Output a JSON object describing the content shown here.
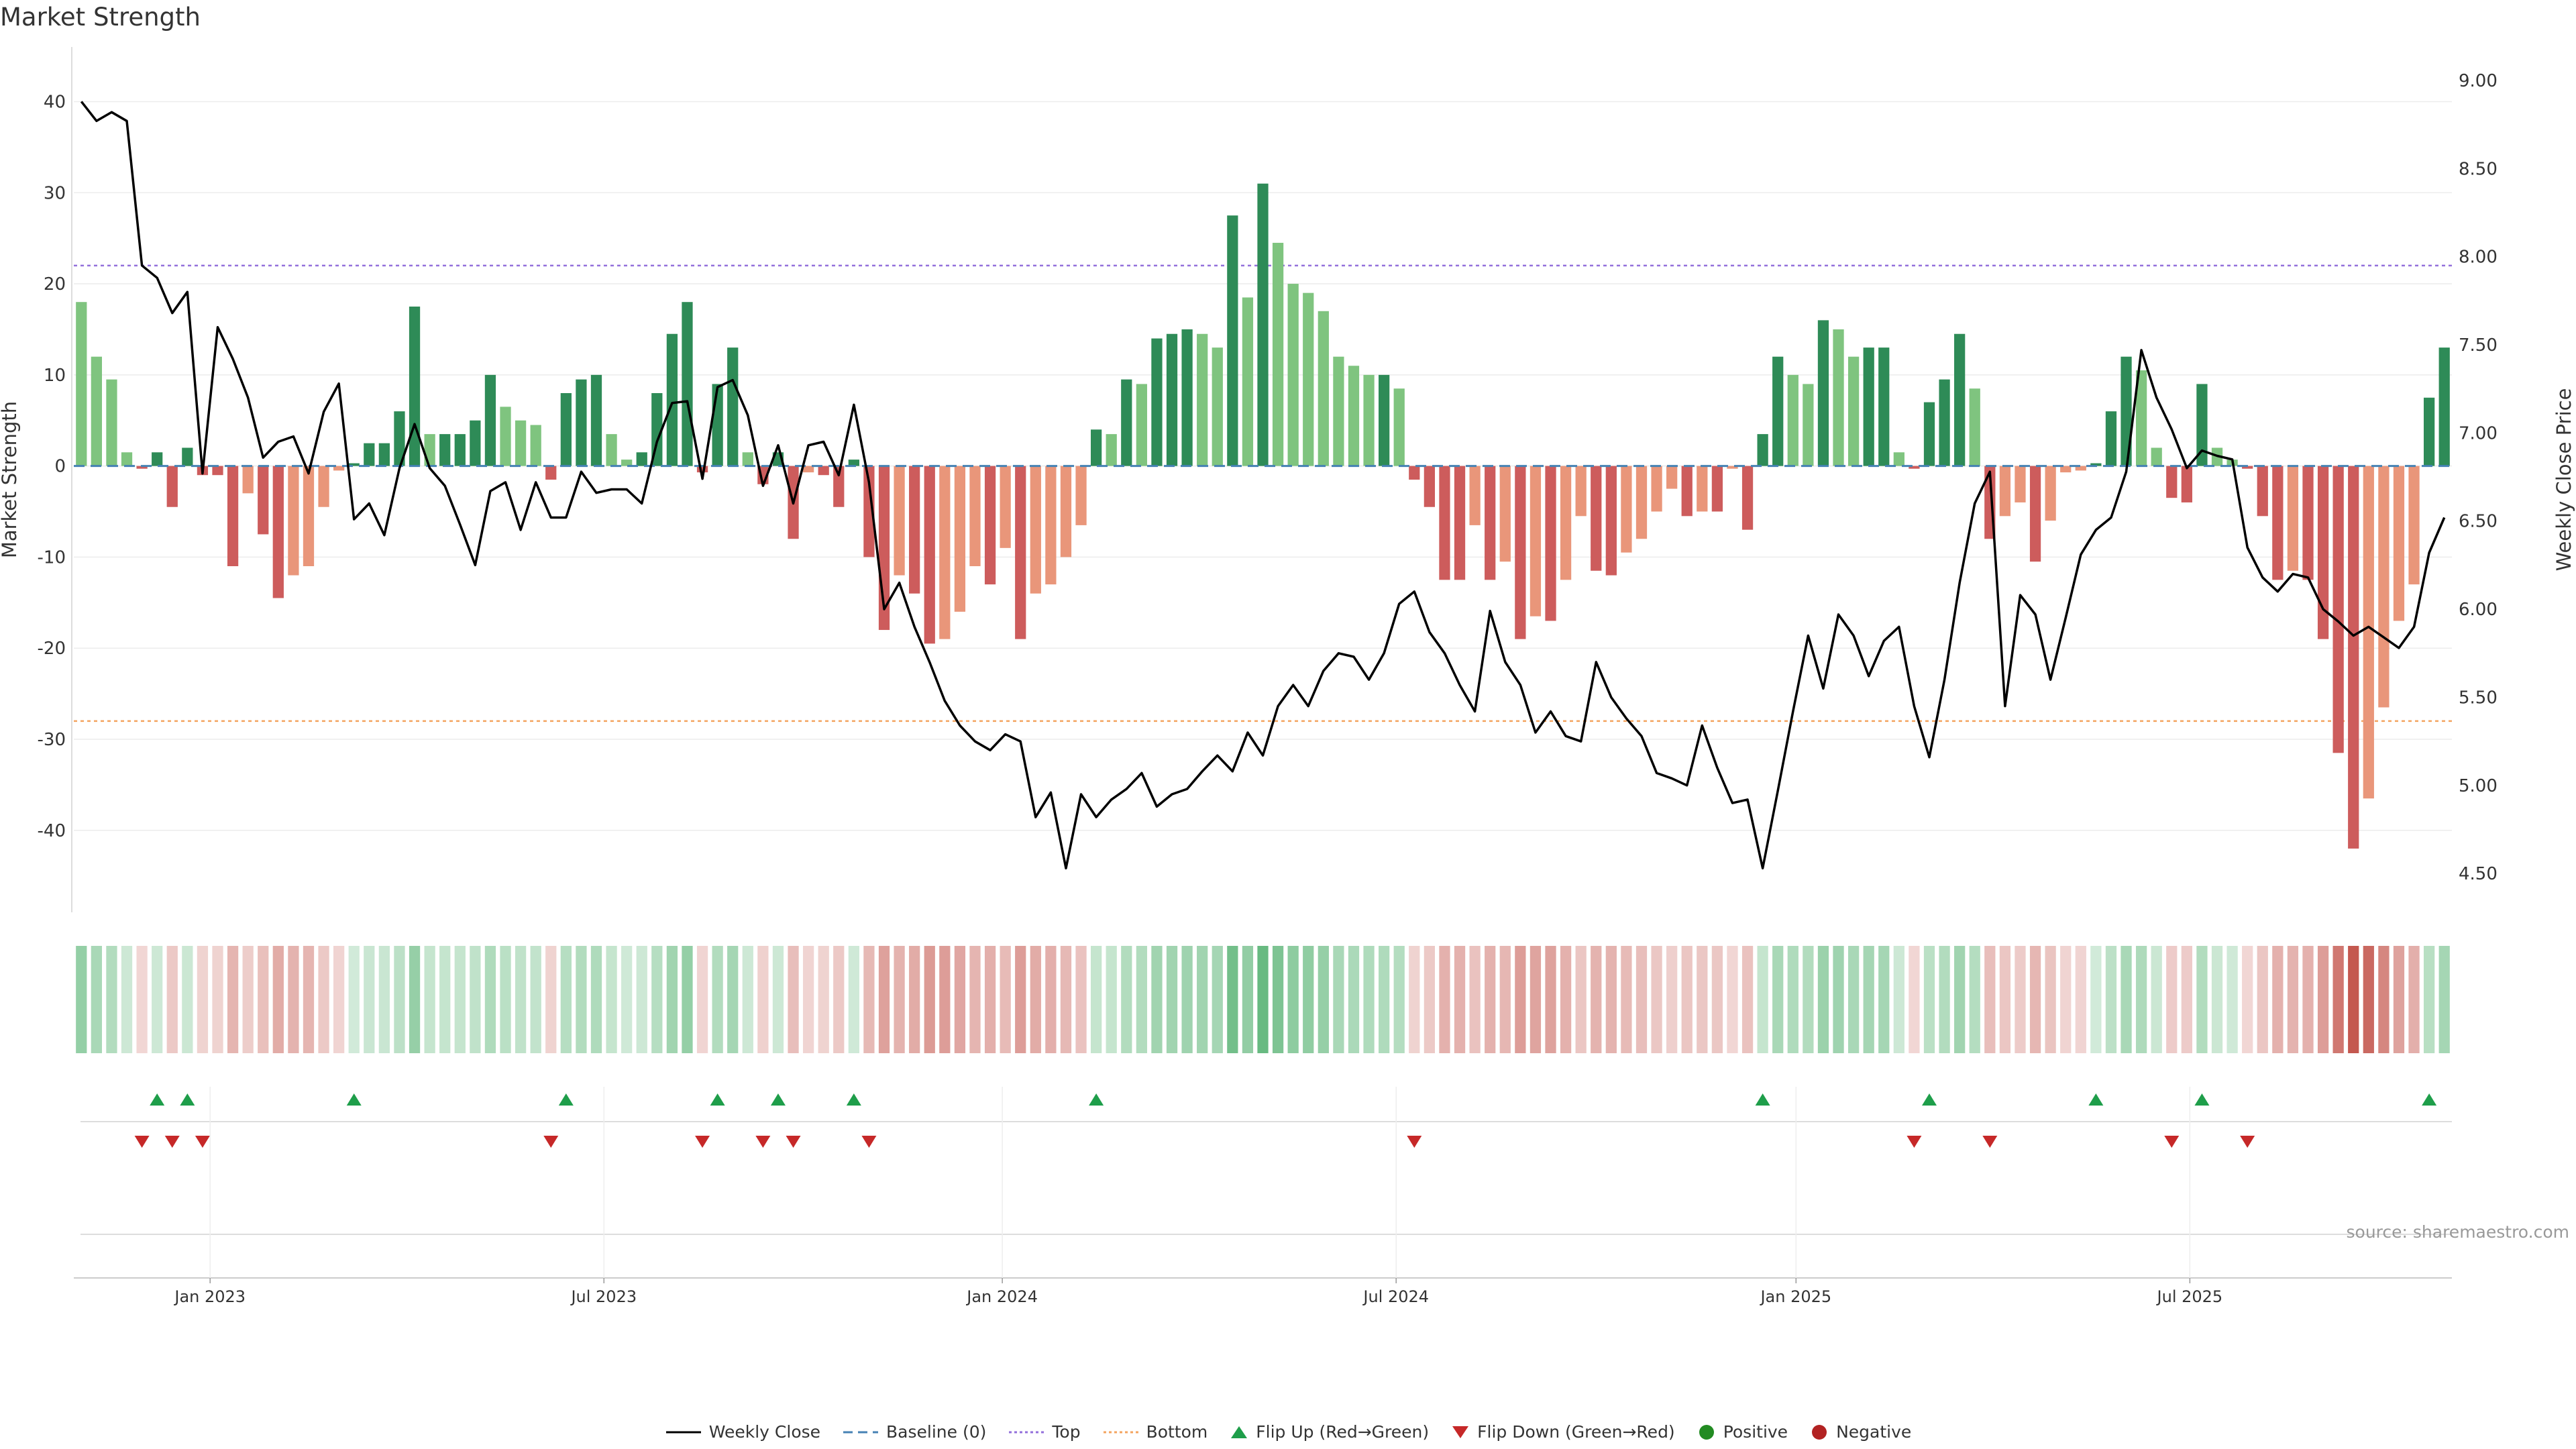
{
  "title": "Market Strength",
  "source": "source: sharemaestro.com",
  "legend": {
    "weekly_close": "Weekly Close",
    "baseline": "Baseline (0)",
    "top": "Top",
    "bottom": "Bottom",
    "flip_up": "Flip Up (Red→Green)",
    "flip_down": "Flip Down (Green→Red)",
    "positive": "Positive",
    "negative": "Negative"
  },
  "colors": {
    "pos_strong": "#2e8b57",
    "pos_light": "#7fc47f",
    "neg_strong": "#cd5c5c",
    "neg_light": "#e9967a",
    "top_line": "#9370db",
    "bottom_line": "#f4a460",
    "baseline": "#4682b4",
    "flip_up": "#1e9e4a",
    "flip_down": "#c62828",
    "positive_dot": "#228b22",
    "negative_dot": "#b22222"
  },
  "chart_data": {
    "type": "bar+line",
    "title": "Market Strength",
    "xlabel": "",
    "ylabel_left": "Market Strength",
    "ylabel_right": "Weekly Close Price",
    "ylim_left": [
      -49,
      46
    ],
    "ylim_right": [
      4.28,
      9.19
    ],
    "yticks_left": [
      40,
      30,
      20,
      10,
      0,
      -10,
      -20,
      -30,
      -40
    ],
    "yticks_right": [
      "9.00",
      "8.50",
      "8.00",
      "7.50",
      "7.00",
      "6.50",
      "6.00",
      "5.50",
      "5.00",
      "4.50"
    ],
    "x_tick_labels": [
      "Jan 2023",
      "Jul 2023",
      "Jan 2024",
      "Jul 2024",
      "Jan 2025",
      "Jul 2025"
    ],
    "x_tick_weeks": [
      8.5,
      34.5,
      60.8,
      86.8,
      113.2,
      139.2
    ],
    "top_level": 22,
    "bottom_level": -28,
    "baseline": 0,
    "strength": [
      18,
      12,
      9.5,
      1.5,
      -0.3,
      1.5,
      -4.5,
      2,
      -1,
      -1,
      -11,
      -3,
      -7.5,
      -14.5,
      -12,
      -11,
      -4.5,
      -0.5,
      0.3,
      2.5,
      2.5,
      6,
      17.5,
      3.5,
      3.5,
      3.5,
      5,
      10,
      6.5,
      5,
      4.5,
      -1.5,
      8,
      9.5,
      10,
      3.5,
      0.7,
      1.5,
      8,
      14.5,
      18,
      -0.7,
      9,
      13,
      1.5,
      -2,
      1.5,
      -8,
      -0.7,
      -1,
      -4.5,
      0.7,
      -10,
      -18,
      -12,
      -14,
      -19.5,
      -19,
      -16,
      -11,
      -13,
      -9,
      -19,
      -14,
      -13,
      -10,
      -6.5,
      4,
      3.5,
      9.5,
      9,
      14,
      14.5,
      15,
      14.5,
      13,
      27.5,
      18.5,
      31,
      24.5,
      20,
      19,
      17,
      12,
      11,
      10,
      10,
      8.5,
      -1.5,
      -4.5,
      -12.5,
      -12.5,
      -6.5,
      -12.5,
      -10.5,
      -19,
      -16.5,
      -17,
      -12.5,
      -5.5,
      -11.5,
      -12,
      -9.5,
      -8,
      -5,
      -2.5,
      -5.5,
      -5,
      -5,
      -0.3,
      -7,
      3.5,
      12,
      10,
      9,
      16,
      15,
      12,
      13,
      13,
      1.5,
      -0.3,
      7,
      9.5,
      14.5,
      8.5,
      -8,
      -5.5,
      -4,
      -10.5,
      -6,
      -0.7,
      -0.5,
      0.3,
      6,
      12,
      10.5,
      2,
      -3.5,
      -4,
      9,
      2,
      0.7,
      -0.3,
      -5.5,
      -12.5,
      -11.5,
      -12.5,
      -19,
      -31.5,
      -42,
      -36.5,
      -26.5,
      -17,
      -13,
      7.5,
      13
    ],
    "weekly_close": [
      8.88,
      8.77,
      8.82,
      8.77,
      7.95,
      7.88,
      7.68,
      7.8,
      6.77,
      7.6,
      7.42,
      7.2,
      6.86,
      6.95,
      6.98,
      6.77,
      7.12,
      7.28,
      6.51,
      6.6,
      6.42,
      6.8,
      7.05,
      6.8,
      6.7,
      6.48,
      6.25,
      6.67,
      6.72,
      6.45,
      6.72,
      6.52,
      6.52,
      6.78,
      6.66,
      6.68,
      6.68,
      6.6,
      6.95,
      7.17,
      7.18,
      6.74,
      7.26,
      7.3,
      7.1,
      6.7,
      6.93,
      6.6,
      6.93,
      6.95,
      6.76,
      7.16,
      6.72,
      6.0,
      6.15,
      5.9,
      5.7,
      5.48,
      5.34,
      5.25,
      5.2,
      5.29,
      5.25,
      4.82,
      4.96,
      4.53,
      4.95,
      4.82,
      4.92,
      4.98,
      5.07,
      4.88,
      4.95,
      4.98,
      5.08,
      5.17,
      5.08,
      5.3,
      5.17,
      5.45,
      5.57,
      5.45,
      5.65,
      5.75,
      5.73,
      5.6,
      5.75,
      6.03,
      6.1,
      5.87,
      5.75,
      5.57,
      5.42,
      5.99,
      5.7,
      5.57,
      5.3,
      5.42,
      5.28,
      5.25,
      5.7,
      5.5,
      5.38,
      5.28,
      5.07,
      5.04,
      5.0,
      5.34,
      5.1,
      4.9,
      4.92,
      4.53,
      4.97,
      5.42,
      5.85,
      5.55,
      5.97,
      5.85,
      5.62,
      5.82,
      5.9,
      5.45,
      5.16,
      5.6,
      6.15,
      6.6,
      6.78,
      5.45,
      6.08,
      5.97,
      5.6,
      5.95,
      6.31,
      6.45,
      6.52,
      6.78,
      7.47,
      7.2,
      7.02,
      6.8,
      6.9,
      6.87,
      6.85,
      6.35,
      6.18,
      6.1,
      6.2,
      6.18,
      6.0,
      5.93,
      5.85,
      5.9,
      5.84,
      5.78,
      5.9,
      6.32,
      6.52
    ]
  }
}
